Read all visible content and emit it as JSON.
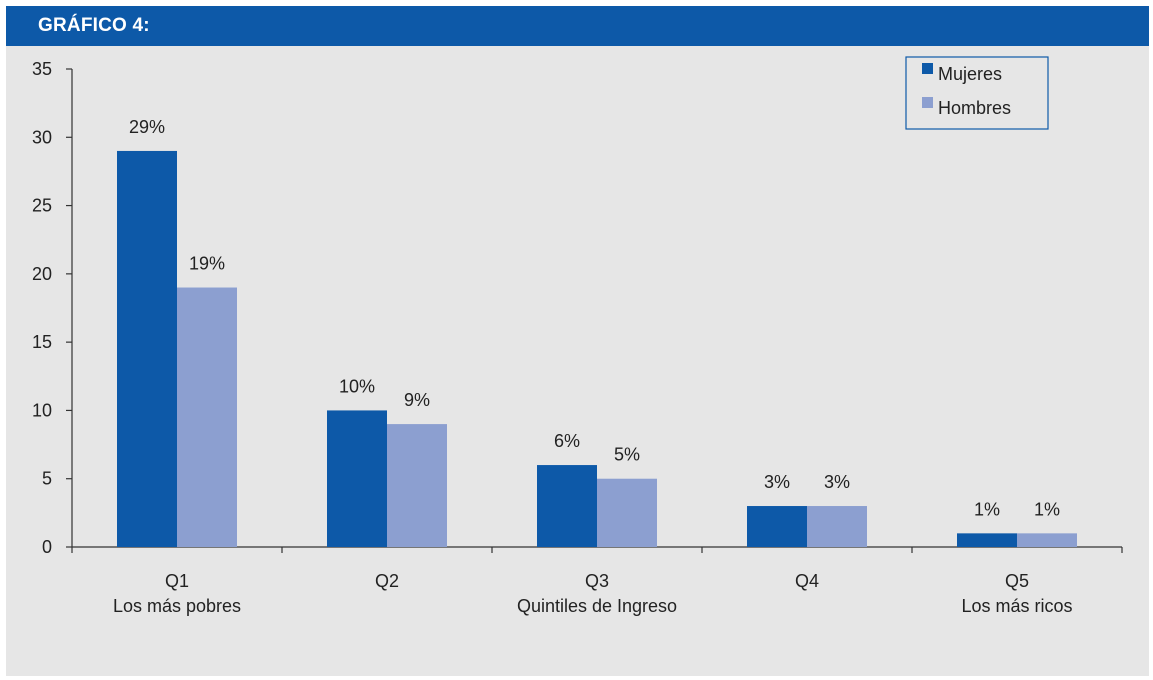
{
  "header": {
    "title": "GRÁFICO 4:"
  },
  "chart_data": {
    "type": "bar",
    "categories": [
      "Q1",
      "Q2",
      "Q3",
      "Q4",
      "Q5"
    ],
    "category_sublabels": [
      "Los más pobres",
      "",
      "Quintiles de Ingreso",
      "",
      "Los más ricos"
    ],
    "series": [
      {
        "name": "Mujeres",
        "values": [
          29,
          10,
          6,
          3,
          1
        ],
        "labels": [
          "29%",
          "10%",
          "6%",
          "3%",
          "1%"
        ],
        "color": "#0d59a8"
      },
      {
        "name": "Hombres",
        "values": [
          19,
          9,
          5,
          3,
          1
        ],
        "labels": [
          "19%",
          "9%",
          "5%",
          "3%",
          "1%"
        ],
        "color": "#8c9fd0"
      }
    ],
    "ylim": [
      0,
      35
    ],
    "yticks": [
      0,
      5,
      10,
      15,
      20,
      25,
      30,
      35
    ],
    "legend_position": "top-right",
    "grid": false
  },
  "colors": {
    "header_bg": "#0d59a8",
    "panel_bg": "#e6e6e6",
    "axis": "#333333"
  }
}
